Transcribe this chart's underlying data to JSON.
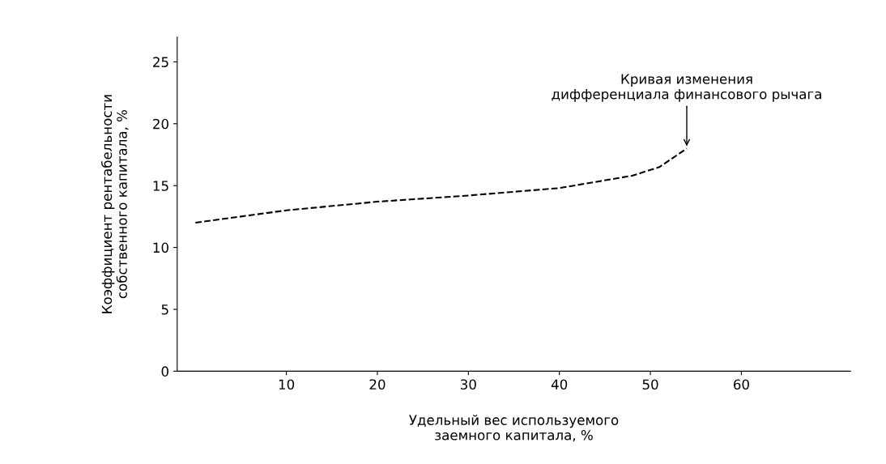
{
  "chart_data": {
    "type": "line",
    "xlabel": "Удельный вес используемого\nзаемного капитала, %",
    "ylabel": "Коэффициент рентабельности\nсобственного капитала, %",
    "x": [
      0,
      10,
      20,
      30,
      40,
      48,
      51,
      54
    ],
    "series": [
      {
        "color": "#000000",
        "values": [
          12,
          13,
          13.7,
          14.2,
          14.8,
          15.8,
          16.5,
          18
        ]
      }
    ],
    "line_style": "dashed",
    "marker": "none",
    "xlim": [
      -2,
      72
    ],
    "ylim": [
      0,
      27
    ],
    "xticks": [
      10,
      20,
      30,
      40,
      50,
      60
    ],
    "yticks": [
      0,
      5,
      10,
      15,
      20,
      25
    ],
    "grid": false,
    "legend": false,
    "annotations": [
      {
        "text": "Кривая изменения\nдифференциала финансового рычага",
        "x": 54,
        "y": 18
      }
    ]
  }
}
